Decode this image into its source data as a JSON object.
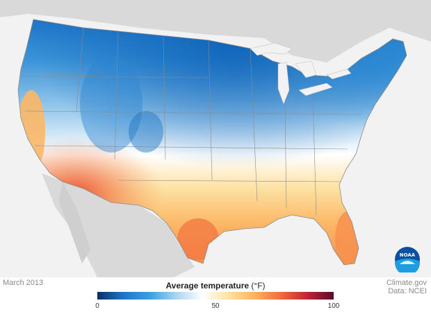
{
  "map": {
    "date": "March 2013",
    "credit_line1": "Climate.gov",
    "credit_line2": "Data: NCEI",
    "logo_text": "NOAA"
  },
  "legend": {
    "title": "Average temperature",
    "unit": "(°F)",
    "min": 0,
    "mid": 50,
    "max": 100,
    "tick_labels": [
      "0",
      "50",
      "100"
    ],
    "colors": [
      "#0b2d66",
      "#1f77c7",
      "#3a9fdf",
      "#a9d5f1",
      "#ffffff",
      "#fde2a0",
      "#fbb35e",
      "#f26a3b",
      "#c02435",
      "#5a0b2a"
    ]
  },
  "colors": {
    "land_background": "#d6d6d6",
    "ocean": "#f2f2f2",
    "borders": "#777777"
  }
}
